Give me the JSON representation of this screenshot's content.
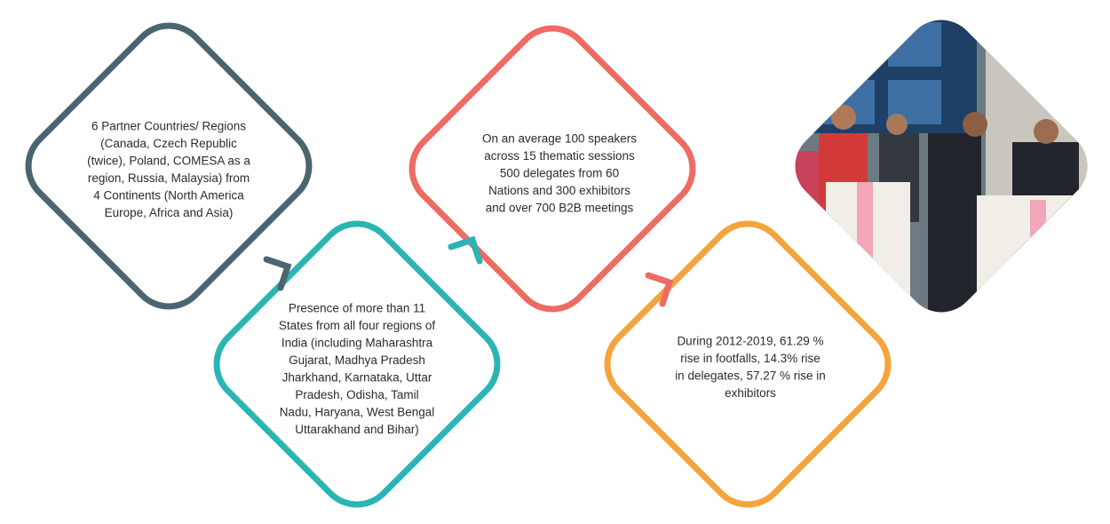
{
  "nodes": [
    {
      "lines": [
        "6 Partner Countries/ Regions",
        "(Canada, Czech Republic",
        "(twice), Poland, COMESA as a",
        "region, Russia, Malaysia) from",
        "4 Continents (North America",
        "Europe, Africa and Asia)"
      ]
    },
    {
      "lines": [
        "Presence of more than 11",
        "States from all four regions of",
        "India (including Maharashtra",
        "Gujarat, Madhya Pradesh",
        "Jharkhand, Karnataka, Uttar",
        "Pradesh, Odisha, Tamil",
        "Nadu, Haryana, West Bengal",
        "Uttarakhand and Bihar)"
      ]
    },
    {
      "lines": [
        "On an average 100 speakers",
        "across 15 thematic sessions",
        "500 delegates from 60",
        "Nations and 300 exhibitors",
        "and over 700 B2B meetings"
      ]
    },
    {
      "lines": [
        "During 2012-2019, 61.29 %",
        "rise in footfalls, 14.3% rise",
        "in delegates, 57.27 % rise in",
        "exhibitors"
      ]
    }
  ]
}
